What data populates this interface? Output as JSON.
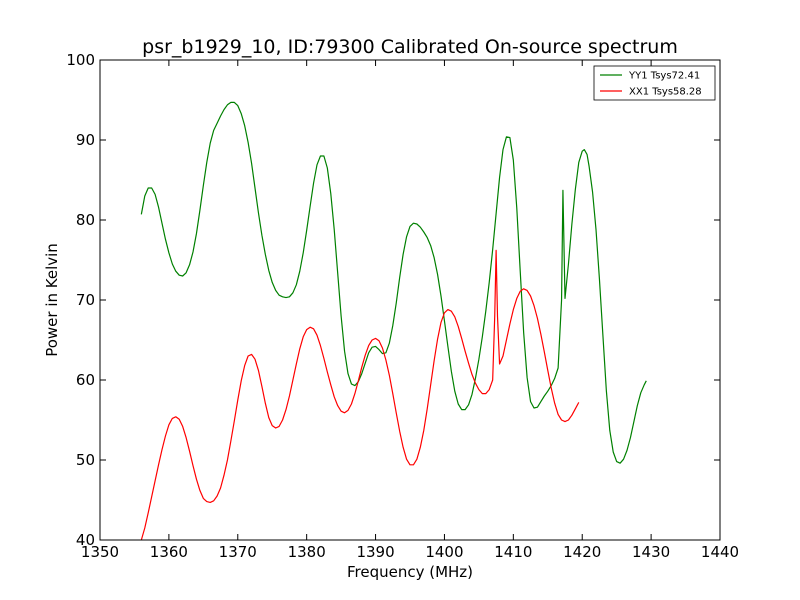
{
  "chart_data": {
    "type": "line",
    "title": "psr_b1929_10, ID:79300 Calibrated On-source spectrum",
    "xlabel": "Frequency (MHz)",
    "ylabel": "Power in Kelvin",
    "xlim": [
      1350,
      1440
    ],
    "ylim": [
      40,
      100
    ],
    "xticks": [
      1350,
      1360,
      1370,
      1380,
      1390,
      1400,
      1410,
      1420,
      1430,
      1440
    ],
    "yticks": [
      40,
      50,
      60,
      70,
      80,
      90,
      100
    ],
    "grid": false,
    "legend_position": "top-right",
    "series": [
      {
        "name": "YY1 Tsys72.41",
        "color": "#008000",
        "points": [
          [
            1356.0,
            80.7
          ],
          [
            1356.5,
            83.0
          ],
          [
            1357.0,
            84.0
          ],
          [
            1357.5,
            84.0
          ],
          [
            1358.0,
            83.2
          ],
          [
            1358.5,
            81.6
          ],
          [
            1359.0,
            79.6
          ],
          [
            1359.5,
            77.6
          ],
          [
            1360.0,
            75.9
          ],
          [
            1360.5,
            74.5
          ],
          [
            1361.0,
            73.6
          ],
          [
            1361.5,
            73.1
          ],
          [
            1362.0,
            73.0
          ],
          [
            1362.5,
            73.4
          ],
          [
            1363.0,
            74.4
          ],
          [
            1363.5,
            76.0
          ],
          [
            1364.0,
            78.3
          ],
          [
            1364.5,
            81.2
          ],
          [
            1365.0,
            84.3
          ],
          [
            1365.5,
            87.2
          ],
          [
            1366.0,
            89.6
          ],
          [
            1366.5,
            91.2
          ],
          [
            1367.0,
            92.1
          ],
          [
            1367.5,
            93.0
          ],
          [
            1368.0,
            93.8
          ],
          [
            1368.5,
            94.4
          ],
          [
            1369.0,
            94.7
          ],
          [
            1369.5,
            94.7
          ],
          [
            1370.0,
            94.3
          ],
          [
            1370.5,
            93.3
          ],
          [
            1371.0,
            91.8
          ],
          [
            1371.5,
            89.7
          ],
          [
            1372.0,
            87.1
          ],
          [
            1372.5,
            84.0
          ],
          [
            1373.0,
            80.9
          ],
          [
            1373.5,
            78.1
          ],
          [
            1374.0,
            75.7
          ],
          [
            1374.5,
            73.7
          ],
          [
            1375.0,
            72.2
          ],
          [
            1375.5,
            71.2
          ],
          [
            1376.0,
            70.6
          ],
          [
            1376.5,
            70.4
          ],
          [
            1377.0,
            70.3
          ],
          [
            1377.5,
            70.4
          ],
          [
            1378.0,
            70.9
          ],
          [
            1378.5,
            71.9
          ],
          [
            1379.0,
            73.6
          ],
          [
            1379.5,
            75.9
          ],
          [
            1380.0,
            78.7
          ],
          [
            1380.5,
            81.7
          ],
          [
            1381.0,
            84.6
          ],
          [
            1381.5,
            86.9
          ],
          [
            1382.0,
            88.0
          ],
          [
            1382.5,
            88.0
          ],
          [
            1383.0,
            86.5
          ],
          [
            1383.5,
            83.3
          ],
          [
            1384.0,
            78.8
          ],
          [
            1384.5,
            73.4
          ],
          [
            1385.0,
            68.0
          ],
          [
            1385.5,
            63.6
          ],
          [
            1386.0,
            60.8
          ],
          [
            1386.5,
            59.5
          ],
          [
            1387.0,
            59.3
          ],
          [
            1387.5,
            59.8
          ],
          [
            1388.0,
            60.8
          ],
          [
            1388.5,
            62.1
          ],
          [
            1389.0,
            63.4
          ],
          [
            1389.5,
            64.1
          ],
          [
            1390.0,
            64.2
          ],
          [
            1390.5,
            63.8
          ],
          [
            1391.0,
            63.3
          ],
          [
            1391.5,
            63.4
          ],
          [
            1392.0,
            64.6
          ],
          [
            1392.5,
            66.8
          ],
          [
            1393.0,
            69.6
          ],
          [
            1393.5,
            72.8
          ],
          [
            1394.0,
            75.7
          ],
          [
            1394.5,
            77.9
          ],
          [
            1395.0,
            79.2
          ],
          [
            1395.5,
            79.6
          ],
          [
            1396.0,
            79.5
          ],
          [
            1396.5,
            79.1
          ],
          [
            1397.0,
            78.5
          ],
          [
            1397.5,
            77.8
          ],
          [
            1398.0,
            76.8
          ],
          [
            1398.5,
            75.3
          ],
          [
            1399.0,
            73.2
          ],
          [
            1399.5,
            70.5
          ],
          [
            1400.0,
            67.4
          ],
          [
            1400.5,
            64.2
          ],
          [
            1401.0,
            61.1
          ],
          [
            1401.5,
            58.6
          ],
          [
            1402.0,
            57.0
          ],
          [
            1402.5,
            56.3
          ],
          [
            1403.0,
            56.3
          ],
          [
            1403.5,
            56.9
          ],
          [
            1404.0,
            58.2
          ],
          [
            1404.5,
            60.2
          ],
          [
            1405.0,
            62.6
          ],
          [
            1405.5,
            65.4
          ],
          [
            1406.0,
            68.6
          ],
          [
            1406.5,
            72.2
          ],
          [
            1407.0,
            76.3
          ],
          [
            1407.5,
            80.8
          ],
          [
            1408.0,
            85.3
          ],
          [
            1408.5,
            88.8
          ],
          [
            1409.0,
            90.4
          ],
          [
            1409.5,
            90.3
          ],
          [
            1410.0,
            87.5
          ],
          [
            1410.5,
            81.5
          ],
          [
            1411.0,
            73.6
          ],
          [
            1411.5,
            65.9
          ],
          [
            1412.0,
            60.3
          ],
          [
            1412.5,
            57.3
          ],
          [
            1413.0,
            56.5
          ],
          [
            1413.5,
            56.6
          ],
          [
            1414.0,
            57.3
          ],
          [
            1414.5,
            58.0
          ],
          [
            1415.0,
            58.6
          ],
          [
            1415.5,
            59.3
          ],
          [
            1416.0,
            60.2
          ],
          [
            1416.5,
            61.5
          ],
          [
            1417.0,
            70.0
          ],
          [
            1417.2,
            83.7
          ],
          [
            1417.5,
            70.2
          ],
          [
            1418.0,
            74.5
          ],
          [
            1418.5,
            79.5
          ],
          [
            1419.0,
            83.8
          ],
          [
            1419.5,
            87.2
          ],
          [
            1420.0,
            88.6
          ],
          [
            1420.3,
            88.8
          ],
          [
            1420.7,
            88.2
          ],
          [
            1421.0,
            86.7
          ],
          [
            1421.5,
            83.5
          ],
          [
            1422.0,
            78.8
          ],
          [
            1422.5,
            72.6
          ],
          [
            1423.0,
            65.6
          ],
          [
            1423.5,
            58.7
          ],
          [
            1424.0,
            53.7
          ],
          [
            1424.5,
            51.0
          ],
          [
            1425.0,
            49.8
          ],
          [
            1425.5,
            49.6
          ],
          [
            1426.0,
            50.1
          ],
          [
            1426.5,
            51.2
          ],
          [
            1427.0,
            52.8
          ],
          [
            1427.5,
            54.8
          ],
          [
            1428.0,
            56.8
          ],
          [
            1428.5,
            58.4
          ],
          [
            1429.0,
            59.4
          ],
          [
            1429.3,
            59.9
          ]
        ]
      },
      {
        "name": "XX1 Tsys58.28",
        "color": "#ff0000",
        "points": [
          [
            1356.0,
            40.0
          ],
          [
            1356.5,
            41.5
          ],
          [
            1357.0,
            43.4
          ],
          [
            1357.5,
            45.4
          ],
          [
            1358.0,
            47.4
          ],
          [
            1358.5,
            49.4
          ],
          [
            1359.0,
            51.3
          ],
          [
            1359.5,
            53.0
          ],
          [
            1360.0,
            54.4
          ],
          [
            1360.5,
            55.2
          ],
          [
            1361.0,
            55.4
          ],
          [
            1361.5,
            55.1
          ],
          [
            1362.0,
            54.2
          ],
          [
            1362.5,
            52.8
          ],
          [
            1363.0,
            51.1
          ],
          [
            1363.5,
            49.3
          ],
          [
            1364.0,
            47.6
          ],
          [
            1364.5,
            46.2
          ],
          [
            1365.0,
            45.2
          ],
          [
            1365.5,
            44.8
          ],
          [
            1366.0,
            44.7
          ],
          [
            1366.5,
            44.9
          ],
          [
            1367.0,
            45.5
          ],
          [
            1367.5,
            46.5
          ],
          [
            1368.0,
            48.1
          ],
          [
            1368.5,
            50.0
          ],
          [
            1369.0,
            52.4
          ],
          [
            1369.5,
            54.9
          ],
          [
            1370.0,
            57.5
          ],
          [
            1370.5,
            59.9
          ],
          [
            1371.0,
            61.8
          ],
          [
            1371.5,
            63.0
          ],
          [
            1372.0,
            63.2
          ],
          [
            1372.5,
            62.6
          ],
          [
            1373.0,
            61.2
          ],
          [
            1373.5,
            59.2
          ],
          [
            1374.0,
            57.1
          ],
          [
            1374.5,
            55.3
          ],
          [
            1375.0,
            54.3
          ],
          [
            1375.5,
            54.0
          ],
          [
            1376.0,
            54.2
          ],
          [
            1376.5,
            55.0
          ],
          [
            1377.0,
            56.3
          ],
          [
            1377.5,
            58.0
          ],
          [
            1378.0,
            60.0
          ],
          [
            1378.5,
            62.0
          ],
          [
            1379.0,
            63.9
          ],
          [
            1379.5,
            65.4
          ],
          [
            1380.0,
            66.3
          ],
          [
            1380.5,
            66.6
          ],
          [
            1381.0,
            66.4
          ],
          [
            1381.5,
            65.6
          ],
          [
            1382.0,
            64.3
          ],
          [
            1382.5,
            62.7
          ],
          [
            1383.0,
            61.0
          ],
          [
            1383.5,
            59.4
          ],
          [
            1384.0,
            57.9
          ],
          [
            1384.5,
            56.8
          ],
          [
            1385.0,
            56.1
          ],
          [
            1385.5,
            55.9
          ],
          [
            1386.0,
            56.2
          ],
          [
            1386.5,
            57.0
          ],
          [
            1387.0,
            58.3
          ],
          [
            1387.5,
            59.9
          ],
          [
            1388.0,
            61.6
          ],
          [
            1388.5,
            63.1
          ],
          [
            1389.0,
            64.3
          ],
          [
            1389.5,
            65.0
          ],
          [
            1390.0,
            65.2
          ],
          [
            1390.5,
            64.9
          ],
          [
            1391.0,
            64.0
          ],
          [
            1391.5,
            62.5
          ],
          [
            1392.0,
            60.6
          ],
          [
            1392.5,
            58.3
          ],
          [
            1393.0,
            55.9
          ],
          [
            1393.5,
            53.6
          ],
          [
            1394.0,
            51.6
          ],
          [
            1394.5,
            50.1
          ],
          [
            1395.0,
            49.4
          ],
          [
            1395.5,
            49.4
          ],
          [
            1396.0,
            50.1
          ],
          [
            1396.5,
            51.6
          ],
          [
            1397.0,
            53.7
          ],
          [
            1397.5,
            56.4
          ],
          [
            1398.0,
            59.4
          ],
          [
            1398.5,
            62.4
          ],
          [
            1399.0,
            65.1
          ],
          [
            1399.5,
            67.2
          ],
          [
            1400.0,
            68.4
          ],
          [
            1400.5,
            68.8
          ],
          [
            1401.0,
            68.6
          ],
          [
            1401.5,
            67.9
          ],
          [
            1402.0,
            66.7
          ],
          [
            1402.5,
            65.2
          ],
          [
            1403.0,
            63.6
          ],
          [
            1403.5,
            62.1
          ],
          [
            1404.0,
            60.7
          ],
          [
            1404.5,
            59.6
          ],
          [
            1405.0,
            58.8
          ],
          [
            1405.5,
            58.3
          ],
          [
            1406.0,
            58.3
          ],
          [
            1406.5,
            58.8
          ],
          [
            1407.0,
            60.0
          ],
          [
            1407.3,
            68.0
          ],
          [
            1407.5,
            76.2
          ],
          [
            1407.7,
            68.0
          ],
          [
            1408.0,
            62.0
          ],
          [
            1408.5,
            63.0
          ],
          [
            1409.0,
            65.0
          ],
          [
            1409.5,
            67.0
          ],
          [
            1410.0,
            68.8
          ],
          [
            1410.5,
            70.2
          ],
          [
            1411.0,
            71.1
          ],
          [
            1411.5,
            71.4
          ],
          [
            1412.0,
            71.2
          ],
          [
            1412.5,
            70.5
          ],
          [
            1413.0,
            69.3
          ],
          [
            1413.5,
            67.7
          ],
          [
            1414.0,
            65.7
          ],
          [
            1414.5,
            63.5
          ],
          [
            1415.0,
            61.2
          ],
          [
            1415.5,
            59.0
          ],
          [
            1416.0,
            57.1
          ],
          [
            1416.5,
            55.7
          ],
          [
            1417.0,
            55.0
          ],
          [
            1417.5,
            54.8
          ],
          [
            1418.0,
            55.0
          ],
          [
            1418.5,
            55.6
          ],
          [
            1419.0,
            56.4
          ],
          [
            1419.5,
            57.2
          ]
        ]
      }
    ]
  }
}
